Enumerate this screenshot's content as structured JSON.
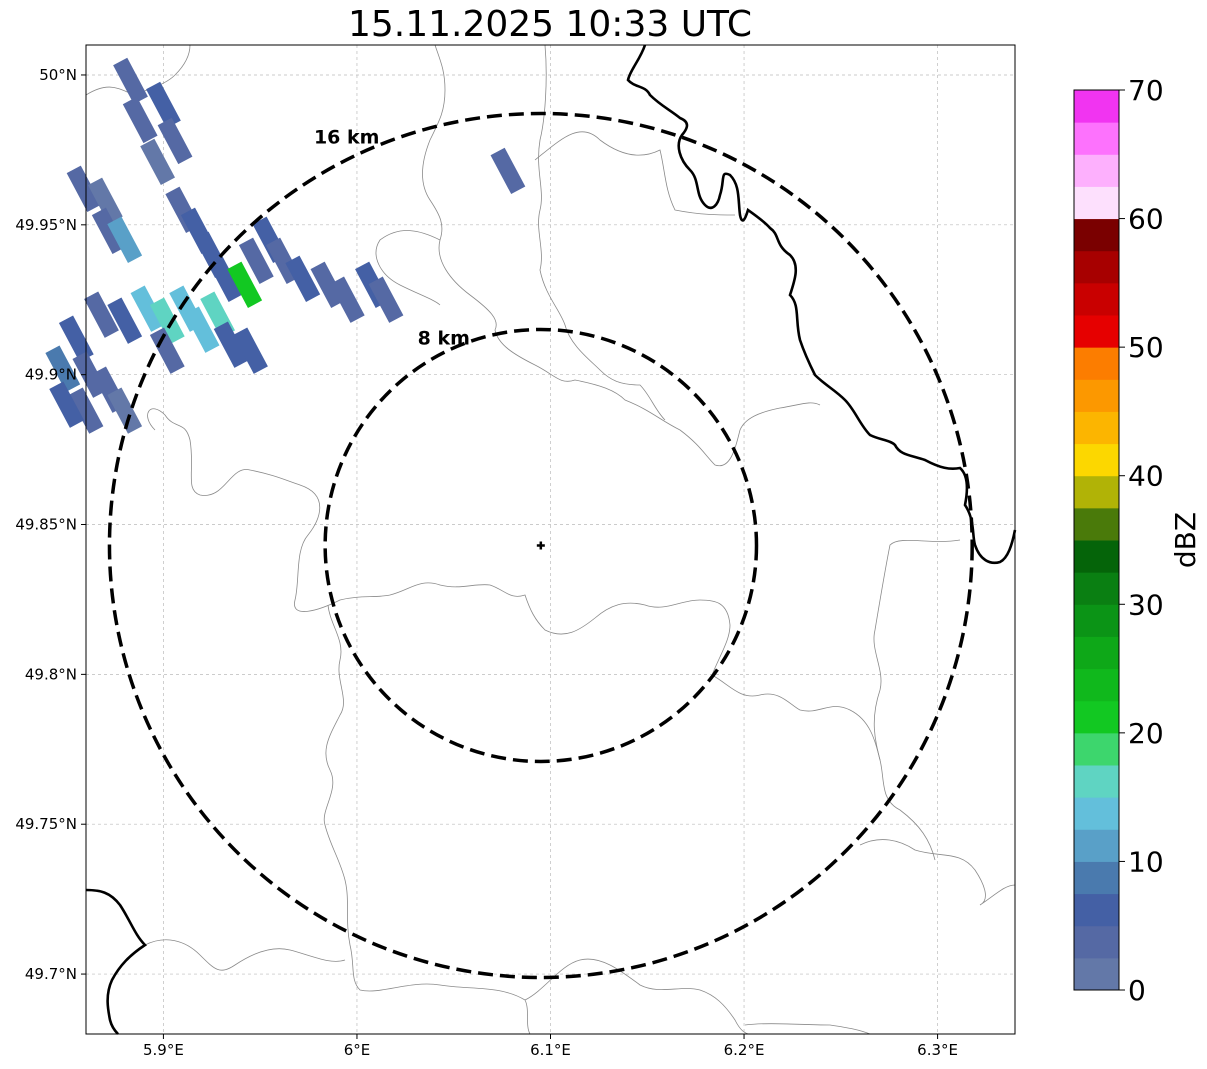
{
  "title": "15.11.2025 10:33 UTC",
  "map": {
    "lon_range": [
      5.86,
      6.34
    ],
    "lat_range": [
      49.68,
      50.01
    ],
    "radar_center": {
      "lon": 6.095,
      "lat": 49.843
    },
    "x_ticks": [
      {
        "value": 5.9,
        "label": "5.9°E"
      },
      {
        "value": 6.0,
        "label": "6°E"
      },
      {
        "value": 6.1,
        "label": "6.1°E"
      },
      {
        "value": 6.2,
        "label": "6.2°E"
      },
      {
        "value": 6.3,
        "label": "6.3°E"
      }
    ],
    "y_ticks": [
      {
        "value": 50.0,
        "label": "50°N"
      },
      {
        "value": 49.95,
        "label": "49.95°N"
      },
      {
        "value": 49.9,
        "label": "49.9°N"
      },
      {
        "value": 49.85,
        "label": "49.85°N"
      },
      {
        "value": 49.8,
        "label": "49.8°N"
      },
      {
        "value": 49.75,
        "label": "49.75°N"
      },
      {
        "value": 49.7,
        "label": "49.7°N"
      }
    ],
    "range_rings": [
      {
        "radius_km": 8,
        "label": "8 km"
      },
      {
        "radius_km": 16,
        "label": "16 km"
      }
    ],
    "gridlines": true
  },
  "colorbar": {
    "label": "dBZ",
    "min": 0,
    "max": 70,
    "ticks": [
      0,
      10,
      20,
      30,
      40,
      50,
      60,
      70
    ],
    "colors": [
      "#6378a8",
      "#5569a4",
      "#4460a5",
      "#4a7aae",
      "#59a0c8",
      "#63bfdb",
      "#5fd4c2",
      "#3dd66d",
      "#12c822",
      "#10b81c",
      "#0ea818",
      "#0b9416",
      "#0a7f12",
      "#056409",
      "#4a7a0a",
      "#b1b306",
      "#fcd700",
      "#fcb500",
      "#fc9800",
      "#fc7d00",
      "#e60000",
      "#c90000",
      "#a70000",
      "#7a0000",
      "#fde0fd",
      "#fdb0fd",
      "#fd72fd",
      "#f134f1"
    ]
  },
  "reflectivity_cells": [
    {
      "lon": 5.883,
      "lat": 49.998,
      "dbz": 3
    },
    {
      "lon": 5.888,
      "lat": 49.985,
      "dbz": 4
    },
    {
      "lon": 5.9,
      "lat": 49.99,
      "dbz": 5
    },
    {
      "lon": 5.906,
      "lat": 49.978,
      "dbz": 3
    },
    {
      "lon": 5.897,
      "lat": 49.971,
      "dbz": 2
    },
    {
      "lon": 5.859,
      "lat": 49.962,
      "dbz": 3
    },
    {
      "lon": 5.87,
      "lat": 49.958,
      "dbz": 2
    },
    {
      "lon": 5.872,
      "lat": 49.948,
      "dbz": 3
    },
    {
      "lon": 5.88,
      "lat": 49.945,
      "dbz": 12
    },
    {
      "lon": 5.91,
      "lat": 49.955,
      "dbz": 4
    },
    {
      "lon": 5.918,
      "lat": 49.948,
      "dbz": 6
    },
    {
      "lon": 5.925,
      "lat": 49.94,
      "dbz": 5
    },
    {
      "lon": 5.932,
      "lat": 49.932,
      "dbz": 7
    },
    {
      "lon": 5.942,
      "lat": 49.93,
      "dbz": 20
    },
    {
      "lon": 5.948,
      "lat": 49.938,
      "dbz": 4
    },
    {
      "lon": 5.955,
      "lat": 49.945,
      "dbz": 5
    },
    {
      "lon": 5.962,
      "lat": 49.938,
      "dbz": 3
    },
    {
      "lon": 5.972,
      "lat": 49.932,
      "dbz": 6
    },
    {
      "lon": 5.985,
      "lat": 49.93,
      "dbz": 4
    },
    {
      "lon": 5.995,
      "lat": 49.925,
      "dbz": 3
    },
    {
      "lon": 6.008,
      "lat": 49.93,
      "dbz": 5
    },
    {
      "lon": 6.015,
      "lat": 49.925,
      "dbz": 4
    },
    {
      "lon": 5.88,
      "lat": 49.918,
      "dbz": 6
    },
    {
      "lon": 5.892,
      "lat": 49.922,
      "dbz": 14
    },
    {
      "lon": 5.902,
      "lat": 49.918,
      "dbz": 15
    },
    {
      "lon": 5.912,
      "lat": 49.922,
      "dbz": 13
    },
    {
      "lon": 5.92,
      "lat": 49.915,
      "dbz": 14
    },
    {
      "lon": 5.928,
      "lat": 49.92,
      "dbz": 15
    },
    {
      "lon": 5.935,
      "lat": 49.91,
      "dbz": 7
    },
    {
      "lon": 5.945,
      "lat": 49.908,
      "dbz": 6
    },
    {
      "lon": 5.902,
      "lat": 49.908,
      "dbz": 4
    },
    {
      "lon": 5.868,
      "lat": 49.92,
      "dbz": 3
    },
    {
      "lon": 5.855,
      "lat": 49.912,
      "dbz": 5
    },
    {
      "lon": 5.848,
      "lat": 49.902,
      "dbz": 9
    },
    {
      "lon": 5.862,
      "lat": 49.9,
      "dbz": 4
    },
    {
      "lon": 5.872,
      "lat": 49.895,
      "dbz": 3
    },
    {
      "lon": 5.88,
      "lat": 49.888,
      "dbz": 2
    },
    {
      "lon": 5.86,
      "lat": 49.888,
      "dbz": 4
    },
    {
      "lon": 5.85,
      "lat": 49.89,
      "dbz": 6
    },
    {
      "lon": 6.078,
      "lat": 49.968,
      "dbz": 3
    }
  ]
}
